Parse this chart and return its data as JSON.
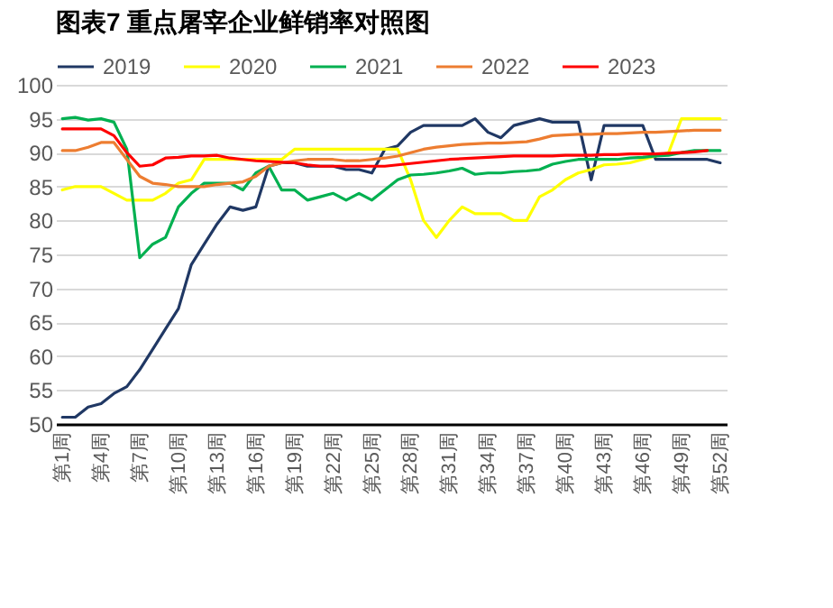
{
  "chart_data": {
    "type": "line",
    "title": "图表7  重点屠宰企业鲜销率对照图",
    "categories": [
      "第1周",
      null,
      null,
      "第4周",
      null,
      null,
      "第7周",
      null,
      null,
      "第10周",
      null,
      null,
      "第13周",
      null,
      null,
      "第16周",
      null,
      null,
      "第19周",
      null,
      null,
      "第22周",
      null,
      null,
      "第25周",
      null,
      null,
      "第28周",
      null,
      null,
      "第31周",
      null,
      null,
      "第34周",
      null,
      null,
      "第37周",
      null,
      null,
      "第40周",
      null,
      null,
      "第43周",
      null,
      null,
      "第46周",
      null,
      null,
      "第49周",
      null,
      null,
      "第52周"
    ],
    "series": [
      {
        "name": "2019",
        "color": "#203864",
        "values": [
          51,
          51,
          52.5,
          53,
          54.5,
          55.5,
          58,
          61,
          64,
          67,
          73.5,
          76.5,
          79.5,
          82,
          81.5,
          82,
          88,
          88.5,
          88.5,
          88,
          88,
          88,
          87.5,
          87.5,
          87,
          90.5,
          91,
          93,
          94,
          94,
          94,
          94,
          95,
          93,
          92.2,
          94,
          94.5,
          95,
          94.5,
          94.5,
          94.5,
          86,
          94,
          94,
          94,
          94,
          89,
          89,
          89,
          89,
          89,
          88.5
        ]
      },
      {
        "name": "2020",
        "color": "#ffff00",
        "values": [
          84.5,
          85,
          85,
          85,
          84,
          83,
          83,
          83,
          84,
          85.5,
          86,
          89,
          89,
          89,
          89,
          89,
          89,
          89,
          90.5,
          90.5,
          90.5,
          90.5,
          90.5,
          90.5,
          90.5,
          90.5,
          90.5,
          86,
          80,
          77.5,
          80,
          82,
          81,
          81,
          81,
          80,
          80,
          83.5,
          84.5,
          86,
          87,
          87.5,
          88.2,
          88.3,
          88.5,
          89,
          89.5,
          90,
          95,
          95,
          95,
          95
        ]
      },
      {
        "name": "2021",
        "color": "#00b050",
        "values": [
          95,
          95.2,
          94.8,
          95,
          94.5,
          90.5,
          74.5,
          76.5,
          77.5,
          82,
          84,
          85.5,
          85.5,
          85.5,
          84.5,
          87,
          88,
          84.5,
          84.5,
          83,
          83.5,
          84,
          83,
          84,
          83,
          84.5,
          86,
          86.7,
          86.8,
          87,
          87.3,
          87.7,
          86.8,
          87,
          87,
          87.2,
          87.3,
          87.5,
          88.3,
          88.7,
          89,
          89,
          89,
          89,
          89.2,
          89.3,
          89.5,
          89.6,
          90,
          90.3,
          90.3,
          90.3
        ]
      },
      {
        "name": "2022",
        "color": "#ed7d31",
        "values": [
          90.3,
          90.3,
          90.8,
          91.5,
          91.5,
          89,
          86.5,
          85.5,
          85.3,
          85,
          85,
          85,
          85.3,
          85.5,
          85.7,
          86.5,
          88,
          88.5,
          88.8,
          89,
          89,
          89,
          88.8,
          88.8,
          89,
          89.2,
          89.5,
          90,
          90.5,
          90.8,
          91,
          91.2,
          91.3,
          91.4,
          91.4,
          91.5,
          91.6,
          92,
          92.5,
          92.6,
          92.7,
          92.7,
          92.8,
          92.8,
          92.9,
          93,
          93,
          93.1,
          93.2,
          93.3,
          93.3,
          93.3
        ]
      },
      {
        "name": "2023",
        "color": "#ff0000",
        "values": [
          93.5,
          93.5,
          93.5,
          93.5,
          92.5,
          90,
          88,
          88.2,
          89.2,
          89.3,
          89.5,
          89.5,
          89.6,
          89.2,
          89,
          88.8,
          88.7,
          88.6,
          88.5,
          88.2,
          88,
          88,
          88,
          88,
          88,
          88,
          88.2,
          88.4,
          88.6,
          88.8,
          89,
          89.1,
          89.2,
          89.3,
          89.4,
          89.5,
          89.5,
          89.5,
          89.5,
          89.6,
          89.6,
          89.6,
          89.7,
          89.7,
          89.8,
          89.8,
          89.8,
          89.9,
          90,
          90.1,
          90.3,
          null
        ]
      }
    ],
    "ylim": [
      50,
      100
    ],
    "yticks": [
      50,
      55,
      60,
      65,
      70,
      75,
      80,
      85,
      90,
      95,
      100
    ],
    "grid": "y",
    "legend": "top",
    "line_style": "solid",
    "marker": "none"
  }
}
